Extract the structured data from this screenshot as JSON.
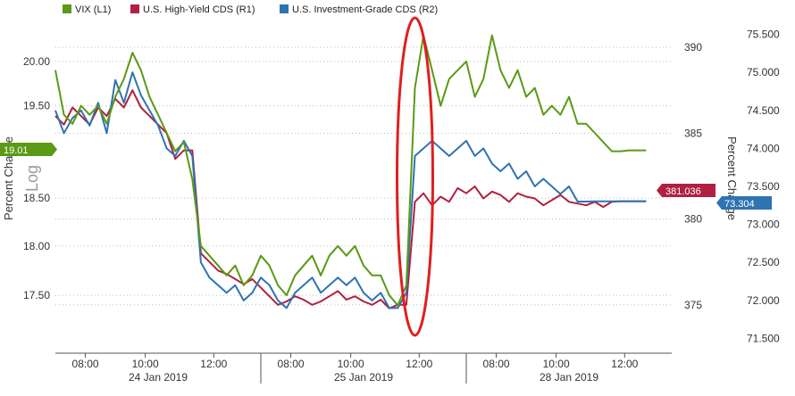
{
  "legend": [
    {
      "label": "VIX (L1)",
      "color": "#5a9a14"
    },
    {
      "label": "U.S. High-Yield CDS (R1)",
      "color": "#b02040"
    },
    {
      "label": "U.S. Investment-Grade CDS (R2)",
      "color": "#2f73b2"
    }
  ],
  "axes": {
    "left_label": "Percent Change",
    "left_scale_label": "Log",
    "right_label": "Percent Change"
  },
  "badges": {
    "vix_last": "19.01",
    "hy_last": "381.036",
    "ig_last": "73.304"
  },
  "chart_data": {
    "type": "line",
    "x_ticks": [
      "08:00",
      "10:00",
      "12:00",
      "08:00",
      "10:00",
      "12:00",
      "08:00",
      "10:00",
      "12:00"
    ],
    "x_days": [
      "24 Jan 2019",
      "25 Jan 2019",
      "28 Jan 2019"
    ],
    "y_left": {
      "ticks": [
        "20.00",
        "19.50",
        "18.50",
        "18.00",
        "17.50"
      ],
      "scale": "log",
      "range": [
        17.0,
        20.4
      ]
    },
    "y_r1": {
      "ticks": [
        "390",
        "385",
        "380",
        "375"
      ],
      "range": [
        372.6,
        391.2
      ]
    },
    "y_r2": {
      "ticks": [
        "75.500",
        "75.000",
        "74.500",
        "74.000",
        "73.500",
        "73.000",
        "72.500",
        "72.000",
        "71.500"
      ],
      "range": [
        71.4,
        75.6
      ]
    },
    "series": [
      {
        "name": "VIX (L1)",
        "axis": "left",
        "color": "#5a9a14",
        "x": [
          0,
          2,
          4,
          6,
          8,
          10,
          12,
          14,
          16,
          18,
          20,
          22,
          24,
          26,
          28,
          30,
          32,
          34,
          36,
          38,
          40,
          42,
          44,
          46,
          48,
          50,
          52,
          54,
          56,
          58,
          60,
          62,
          64,
          66,
          68,
          70,
          72,
          74,
          76,
          78,
          80,
          82,
          84,
          86,
          88,
          90,
          92,
          94,
          96,
          98,
          100,
          102,
          104,
          106,
          108,
          110,
          112,
          114,
          116,
          118,
          120,
          122,
          124,
          126,
          128,
          130,
          132,
          134,
          136,
          138,
          140,
          142,
          144
        ],
        "y": [
          19.9,
          19.4,
          19.3,
          19.5,
          19.4,
          19.5,
          19.3,
          19.6,
          19.8,
          20.1,
          19.9,
          19.6,
          19.4,
          19.2,
          19.0,
          19.1,
          18.7,
          18.0,
          17.9,
          17.8,
          17.7,
          17.8,
          17.6,
          17.7,
          17.9,
          17.8,
          17.6,
          17.5,
          17.7,
          17.8,
          17.9,
          17.7,
          17.9,
          18.0,
          17.9,
          18.0,
          17.8,
          17.7,
          17.7,
          17.5,
          17.4,
          17.6,
          19.7,
          20.3,
          19.9,
          19.5,
          19.8,
          19.9,
          20.0,
          19.6,
          19.8,
          20.3,
          19.9,
          19.7,
          19.9,
          19.6,
          19.7,
          19.4,
          19.5,
          19.4,
          19.6,
          19.3,
          19.3,
          19.2,
          19.1,
          19.0,
          19.0,
          19.01,
          19.01,
          19.01,
          19.01,
          19.01,
          19.01
        ]
      },
      {
        "name": "U.S. High-Yield CDS (R1)",
        "axis": "r1",
        "color": "#b02040",
        "x": [
          0,
          2,
          4,
          6,
          8,
          10,
          12,
          14,
          16,
          18,
          20,
          22,
          24,
          26,
          28,
          30,
          32,
          34,
          36,
          38,
          40,
          42,
          44,
          46,
          48,
          50,
          52,
          54,
          56,
          58,
          60,
          62,
          64,
          66,
          68,
          70,
          72,
          74,
          76,
          78,
          80,
          82,
          84,
          86,
          88,
          90,
          92,
          94,
          96,
          98,
          100,
          102,
          104,
          106,
          108,
          110,
          112,
          114,
          116,
          118,
          120,
          122,
          124,
          126,
          128,
          130,
          132,
          134,
          136,
          138,
          140,
          142,
          144
        ],
        "y": [
          386.0,
          385.5,
          386.5,
          386.0,
          385.5,
          386.5,
          386.0,
          387.0,
          386.5,
          387.5,
          386.5,
          386.0,
          385.5,
          385.0,
          383.5,
          384.0,
          384.0,
          378.0,
          377.5,
          377.0,
          376.8,
          376.5,
          376.2,
          376.5,
          376.0,
          375.5,
          375.0,
          375.2,
          375.5,
          375.3,
          375.0,
          375.2,
          375.5,
          375.8,
          375.3,
          375.5,
          375.2,
          375.0,
          375.3,
          374.8,
          375.0,
          375.0,
          381.0,
          381.5,
          380.8,
          381.3,
          381.0,
          381.8,
          381.5,
          381.9,
          381.2,
          381.6,
          381.4,
          381.0,
          381.5,
          381.3,
          381.2,
          380.8,
          381.1,
          381.4,
          381.0,
          380.9,
          380.8,
          381.0,
          380.7,
          381.0,
          381.036,
          381.036,
          381.036,
          381.036,
          381.036,
          381.036,
          381.036
        ]
      },
      {
        "name": "U.S. Investment-Grade CDS (R2)",
        "axis": "r2",
        "color": "#2f73b2",
        "x": [
          0,
          2,
          4,
          6,
          8,
          10,
          12,
          14,
          16,
          18,
          20,
          22,
          24,
          26,
          28,
          30,
          32,
          34,
          36,
          38,
          40,
          42,
          44,
          46,
          48,
          50,
          52,
          54,
          56,
          58,
          60,
          62,
          64,
          66,
          68,
          70,
          72,
          74,
          76,
          78,
          80,
          82,
          84,
          86,
          88,
          90,
          92,
          94,
          96,
          98,
          100,
          102,
          104,
          106,
          108,
          110,
          112,
          114,
          116,
          118,
          120,
          122,
          124,
          126,
          128,
          130,
          132,
          134,
          136,
          138,
          140,
          142,
          144
        ],
        "y": [
          74.5,
          74.2,
          74.4,
          74.5,
          74.3,
          74.6,
          74.2,
          74.9,
          74.6,
          75.0,
          74.7,
          74.5,
          74.3,
          74.0,
          73.9,
          74.1,
          73.9,
          72.5,
          72.3,
          72.2,
          72.1,
          72.2,
          72.0,
          72.1,
          72.3,
          72.2,
          72.0,
          71.9,
          72.1,
          72.2,
          72.3,
          72.1,
          72.2,
          72.3,
          72.2,
          72.3,
          72.1,
          72.0,
          72.1,
          71.9,
          71.9,
          72.1,
          73.9,
          74.0,
          74.1,
          74.0,
          73.9,
          74.0,
          74.1,
          73.9,
          74.0,
          73.8,
          73.7,
          73.8,
          73.6,
          73.7,
          73.5,
          73.6,
          73.5,
          73.4,
          73.5,
          73.3,
          73.3,
          73.304,
          73.304,
          73.304,
          73.304,
          73.304,
          73.304,
          73.304,
          73.304,
          73.304,
          73.304
        ]
      }
    ],
    "annotation": {
      "type": "ellipse",
      "color": "#e01e1e"
    },
    "grid": "horizontal-dotted",
    "legend_position": "top-left"
  }
}
